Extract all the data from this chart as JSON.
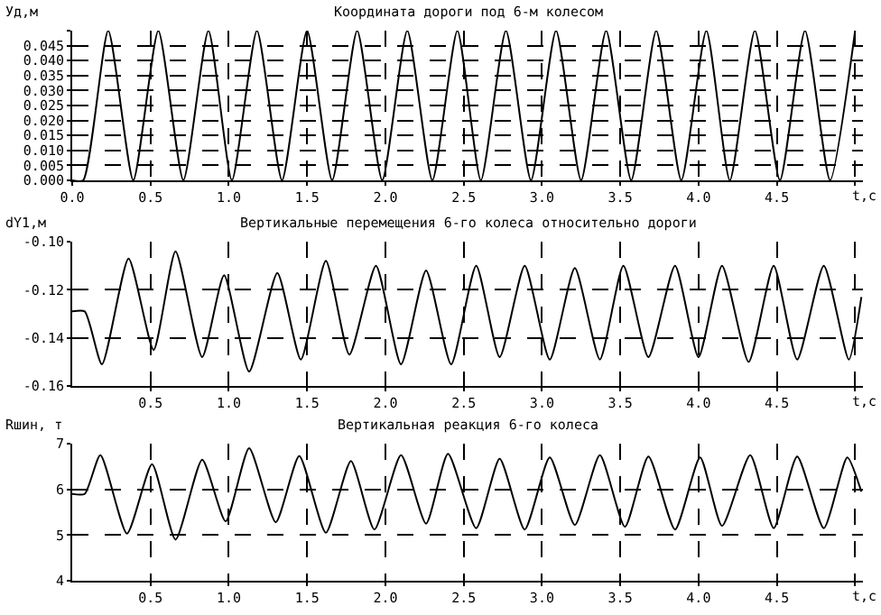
{
  "chart_data": [
    {
      "type": "line",
      "title": "Координата дороги под 6-м колесом",
      "xlabel": "t,c",
      "ylabel": "Уд,м",
      "grid": true,
      "line_style": "solid",
      "marker": "none",
      "xlim": [
        0,
        5.05
      ],
      "xticks": [
        {
          "value": 0,
          "label": "0.0"
        },
        0.5,
        {
          "value": 1,
          "label": "1.0"
        },
        1.5,
        {
          "value": 2,
          "label": "2.0"
        },
        2.5,
        {
          "value": 3,
          "label": "3.0"
        },
        3.5,
        {
          "value": 4,
          "label": "4.0"
        },
        4.5,
        {
          "value": 5,
          "label": null
        }
      ],
      "ylim": [
        0,
        0.05
      ],
      "yticks": [
        {
          "value": 0,
          "label": "0.000"
        },
        {
          "value": 0.005,
          "label": "0.005"
        },
        {
          "value": 0.01,
          "label": "0.010"
        },
        {
          "value": 0.015,
          "label": "0.015"
        },
        {
          "value": 0.02,
          "label": "0.020"
        },
        {
          "value": 0.025,
          "label": "0.025"
        },
        {
          "value": 0.03,
          "label": "0.030"
        },
        {
          "value": 0.035,
          "label": "0.035"
        },
        {
          "value": 0.04,
          "label": "0.040"
        },
        {
          "value": 0.045,
          "label": "0.045"
        },
        {
          "value": 0.05,
          "label": null
        }
      ],
      "series": [
        {
          "color": "#000000",
          "x": [
            0,
            0.07,
            0.23,
            0.39,
            0.55,
            0.71,
            0.87,
            1.02,
            1.18,
            1.34,
            1.5,
            1.66,
            1.82,
            1.98,
            2.14,
            2.3,
            2.46,
            2.61,
            2.77,
            2.93,
            3.09,
            3.25,
            3.41,
            3.57,
            3.73,
            3.89,
            4.05,
            4.2,
            4.36,
            4.52,
            4.68,
            4.84,
            5.0
          ],
          "values": [
            0,
            0,
            0.05,
            0,
            0.05,
            0,
            0.05,
            0,
            0.05,
            0,
            0.05,
            0,
            0.05,
            0,
            0.05,
            0,
            0.05,
            0,
            0.05,
            0,
            0.05,
            0,
            0.05,
            0,
            0.05,
            0,
            0.05,
            0,
            0.05,
            0,
            0.05,
            0,
            0.05
          ]
        }
      ]
    },
    {
      "type": "line",
      "title": "Вертикальные перемещения 6-го колеса относительно дороги",
      "xlabel": "t,c",
      "ylabel": "dY1,м",
      "grid": true,
      "line_style": "solid",
      "marker": "none",
      "xlim": [
        0,
        5.05
      ],
      "xticks": [
        0.5,
        {
          "value": 1,
          "label": "1.0"
        },
        1.5,
        {
          "value": 2,
          "label": "2.0"
        },
        2.5,
        {
          "value": 3,
          "label": "3.0"
        },
        3.5,
        {
          "value": 4,
          "label": "4.0"
        },
        4.5,
        {
          "value": 5,
          "label": null
        }
      ],
      "ylim": [
        -0.16,
        -0.1
      ],
      "yticks": [
        {
          "value": -0.16,
          "label": "-0.16"
        },
        {
          "value": -0.14,
          "label": "-0.14"
        },
        {
          "value": -0.12,
          "label": "-0.12"
        },
        {
          "value": -0.1,
          "label": "-0.10"
        }
      ],
      "series": [
        {
          "color": "#000000",
          "x": [
            0,
            0.08,
            0.19,
            0.36,
            0.52,
            0.66,
            0.83,
            0.97,
            1.13,
            1.31,
            1.46,
            1.62,
            1.77,
            1.94,
            2.1,
            2.26,
            2.42,
            2.58,
            2.73,
            2.89,
            3.05,
            3.21,
            3.37,
            3.52,
            3.68,
            3.85,
            4.0,
            4.15,
            4.32,
            4.48,
            4.63,
            4.8,
            4.96,
            5.04
          ],
          "values": [
            -0.129,
            -0.129,
            -0.151,
            -0.107,
            -0.145,
            -0.104,
            -0.148,
            -0.114,
            -0.154,
            -0.113,
            -0.149,
            -0.108,
            -0.147,
            -0.11,
            -0.151,
            -0.112,
            -0.151,
            -0.11,
            -0.148,
            -0.11,
            -0.149,
            -0.111,
            -0.149,
            -0.11,
            -0.148,
            -0.11,
            -0.148,
            -0.11,
            -0.15,
            -0.11,
            -0.149,
            -0.11,
            -0.149,
            -0.123
          ]
        }
      ]
    },
    {
      "type": "line",
      "title": "Вертикальная реакция 6-го колеса",
      "xlabel": "t,c",
      "ylabel": "Rшин, т",
      "grid": true,
      "line_style": "solid",
      "marker": "none",
      "xlim": [
        0,
        5.05
      ],
      "xticks": [
        0.5,
        {
          "value": 1,
          "label": "1.0"
        },
        1.5,
        {
          "value": 2,
          "label": "2.0"
        },
        2.5,
        {
          "value": 3,
          "label": "3.0"
        },
        3.5,
        {
          "value": 4,
          "label": "4.0"
        },
        4.5,
        {
          "value": 5,
          "label": null
        }
      ],
      "ylim": [
        4,
        7
      ],
      "yticks": [
        4,
        5,
        6,
        7
      ],
      "series": [
        {
          "color": "#000000",
          "x": [
            0,
            0.08,
            0.18,
            0.35,
            0.51,
            0.66,
            0.83,
            0.98,
            1.13,
            1.3,
            1.45,
            1.62,
            1.78,
            1.93,
            2.1,
            2.26,
            2.4,
            2.58,
            2.73,
            2.89,
            3.05,
            3.21,
            3.37,
            3.53,
            3.68,
            3.85,
            4.01,
            4.15,
            4.33,
            4.48,
            4.63,
            4.8,
            4.95,
            5.04
          ],
          "values": [
            5.9,
            5.9,
            6.75,
            5.03,
            6.55,
            4.9,
            6.65,
            5.3,
            6.9,
            5.28,
            6.73,
            5.05,
            6.62,
            5.12,
            6.75,
            5.25,
            6.78,
            5.15,
            6.67,
            5.12,
            6.7,
            5.22,
            6.75,
            5.18,
            6.72,
            5.12,
            6.7,
            5.2,
            6.75,
            5.15,
            6.72,
            5.15,
            6.7,
            5.95
          ]
        }
      ]
    }
  ]
}
